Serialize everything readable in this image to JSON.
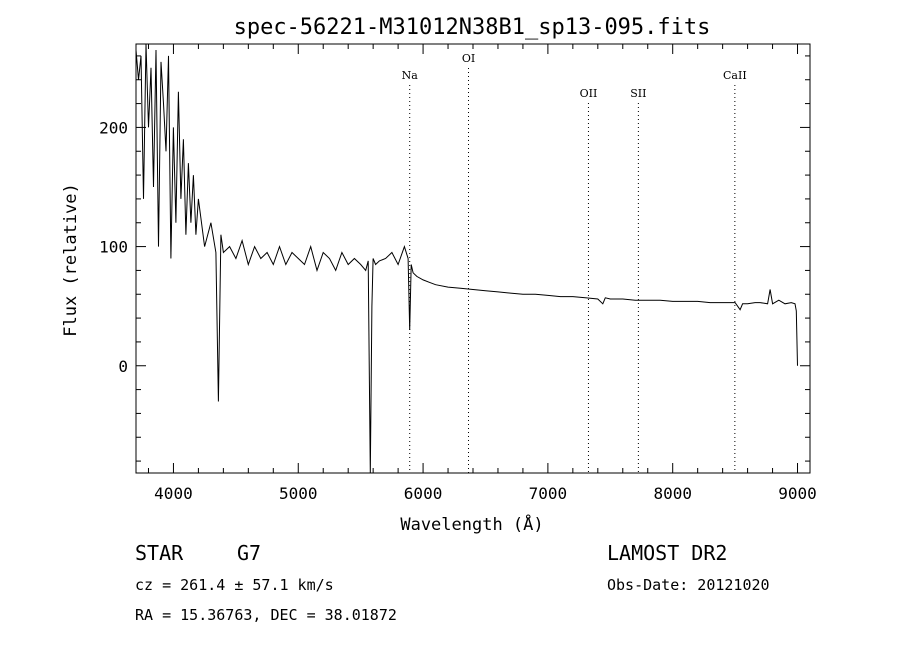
{
  "chart_data": {
    "type": "line",
    "title": "spec-56221-M31012N38B1_sp13-095.fits",
    "xlabel": "Wavelength (Å)",
    "ylabel": "Flux (relative)",
    "xlim": [
      3700,
      9100
    ],
    "ylim": [
      -90,
      270
    ],
    "x_ticks": [
      4000,
      5000,
      6000,
      7000,
      8000,
      9000
    ],
    "y_ticks": [
      0,
      100,
      200
    ],
    "x_tick_labels": [
      "4000",
      "5000",
      "6000",
      "7000",
      "8000",
      "9000"
    ],
    "y_tick_labels": [
      "0",
      "100",
      "200"
    ],
    "grid": false,
    "line_color": "#000000",
    "lines": [
      {
        "label": "Na",
        "wavelength": 5893
      },
      {
        "label": "OI",
        "wavelength": 6364
      },
      {
        "label": "OII",
        "wavelength": 7325
      },
      {
        "label": "SII",
        "wavelength": 7725
      },
      {
        "label": "CaII",
        "wavelength": 8498
      }
    ],
    "series": [
      {
        "x": [
          3700,
          3720,
          3740,
          3760,
          3780,
          3800,
          3820,
          3840,
          3860,
          3880,
          3900,
          3920,
          3940,
          3960,
          3980,
          4000,
          4020,
          4040,
          4060,
          4080,
          4100,
          4120,
          4140,
          4160,
          4180,
          4200,
          4250,
          4300,
          4340,
          4360,
          4380,
          4400,
          4450,
          4500,
          4550,
          4600,
          4650,
          4700,
          4750,
          4800,
          4850,
          4900,
          4950,
          5000,
          5050,
          5100,
          5150,
          5200,
          5250,
          5300,
          5350,
          5400,
          5450,
          5500,
          5540,
          5560,
          5577,
          5590,
          5600,
          5620,
          5650,
          5700,
          5750,
          5800,
          5850,
          5880,
          5893,
          5905,
          5920,
          5950,
          6000,
          6050,
          6100,
          6200,
          6300,
          6400,
          6500,
          6600,
          6700,
          6800,
          6900,
          7000,
          7100,
          7200,
          7300,
          7400,
          7440,
          7460,
          7500,
          7600,
          7700,
          7800,
          7900,
          8000,
          8100,
          8200,
          8300,
          8400,
          8500,
          8540,
          8560,
          8600,
          8660,
          8700,
          8760,
          8780,
          8800,
          8850,
          8900,
          8950,
          8980,
          8990,
          9000
        ],
        "y": [
          265,
          240,
          260,
          140,
          270,
          200,
          250,
          150,
          265,
          100,
          255,
          220,
          180,
          260,
          90,
          200,
          120,
          230,
          140,
          190,
          110,
          170,
          120,
          160,
          110,
          140,
          100,
          120,
          95,
          -30,
          110,
          95,
          100,
          90,
          105,
          85,
          100,
          90,
          95,
          85,
          100,
          85,
          95,
          90,
          85,
          100,
          80,
          95,
          90,
          80,
          95,
          85,
          90,
          85,
          80,
          88,
          -90,
          50,
          90,
          85,
          88,
          90,
          95,
          85,
          100,
          90,
          30,
          85,
          78,
          75,
          72,
          70,
          68,
          66,
          65,
          64,
          63,
          62,
          61,
          60,
          60,
          59,
          58,
          58,
          57,
          56,
          52,
          57,
          56,
          56,
          55,
          55,
          55,
          54,
          54,
          54,
          53,
          53,
          53,
          47,
          52,
          52,
          53,
          53,
          52,
          64,
          52,
          55,
          52,
          53,
          52,
          46,
          0
        ]
      }
    ]
  },
  "footer": {
    "object_class": "STAR",
    "subclass": "G7",
    "cz": "cz = 261.4 ± 57.1 km/s",
    "coords": "RA =  15.36763, DEC =  38.01872",
    "survey": "LAMOST DR2",
    "obs_date": "Obs-Date: 20121020"
  }
}
